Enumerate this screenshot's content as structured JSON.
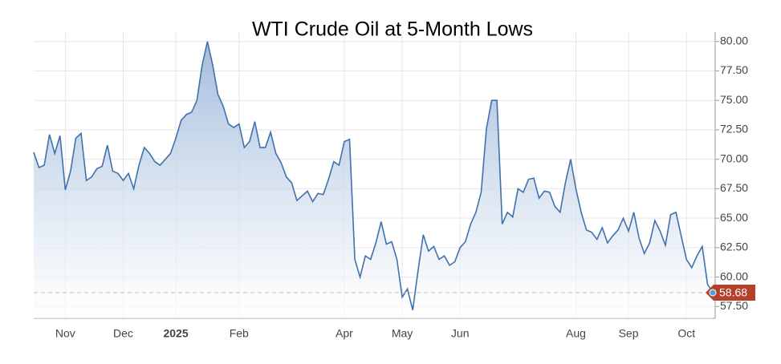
{
  "chart_data": {
    "type": "line",
    "title": "WTI Crude Oil at 5-Month Lows",
    "categories": [
      null,
      null,
      null,
      null,
      null,
      null,
      "Nov",
      null,
      null,
      null,
      null,
      null,
      null,
      null,
      null,
      null,
      null,
      "Dec",
      null,
      null,
      null,
      null,
      null,
      null,
      null,
      null,
      null,
      "2025",
      null,
      null,
      null,
      null,
      null,
      null,
      null,
      null,
      null,
      null,
      null,
      "Feb",
      null,
      null,
      null,
      null,
      null,
      null,
      null,
      null,
      null,
      null,
      null,
      null,
      null,
      null,
      null,
      null,
      null,
      null,
      null,
      "Apr",
      null,
      null,
      null,
      null,
      null,
      null,
      null,
      null,
      null,
      null,
      "May",
      null,
      null,
      null,
      null,
      null,
      null,
      null,
      null,
      null,
      null,
      "Jun",
      null,
      null,
      null,
      null,
      null,
      null,
      null,
      null,
      null,
      null,
      null,
      null,
      null,
      null,
      null,
      null,
      null,
      null,
      null,
      null,
      null,
      "Aug",
      null,
      null,
      null,
      null,
      null,
      null,
      null,
      null,
      null,
      "Sep",
      null,
      null,
      null,
      null,
      null,
      null,
      null,
      null,
      null,
      null,
      "Oct",
      null,
      null,
      null,
      null,
      null
    ],
    "values": [
      70.6,
      69.3,
      69.5,
      72.1,
      70.5,
      72.0,
      67.4,
      69.0,
      71.8,
      72.2,
      68.2,
      68.5,
      69.2,
      69.4,
      71.2,
      69.0,
      68.8,
      68.2,
      68.8,
      67.5,
      69.5,
      71.0,
      70.5,
      69.8,
      69.5,
      70.0,
      70.5,
      71.8,
      73.3,
      73.8,
      74.0,
      75.0,
      78.0,
      80.0,
      78.0,
      75.5,
      74.5,
      73.0,
      72.7,
      73.0,
      71.0,
      71.5,
      73.2,
      71.0,
      71.0,
      72.3,
      70.5,
      69.7,
      68.5,
      68.0,
      66.5,
      66.9,
      67.3,
      66.4,
      67.1,
      67.0,
      68.3,
      69.8,
      69.5,
      71.5,
      71.7,
      61.5,
      60.0,
      61.8,
      61.5,
      62.9,
      64.7,
      62.8,
      63.0,
      61.5,
      58.3,
      59.0,
      57.2,
      60.5,
      63.6,
      62.2,
      62.6,
      61.5,
      61.8,
      61.0,
      61.3,
      62.5,
      63.0,
      64.5,
      65.5,
      67.2,
      72.6,
      75.0,
      75.0,
      64.5,
      65.5,
      65.1,
      67.5,
      67.2,
      68.3,
      68.4,
      66.7,
      67.3,
      67.2,
      66.0,
      65.5,
      68.0,
      70.0,
      67.5,
      65.5,
      64.0,
      63.8,
      63.2,
      64.2,
      62.9,
      63.5,
      64.0,
      65.0,
      63.9,
      65.5,
      63.3,
      62.0,
      62.9,
      64.8,
      63.9,
      62.7,
      65.3,
      65.5,
      63.5,
      61.5,
      60.8,
      61.8,
      62.6,
      59.4,
      58.68
    ],
    "color": "#3f72ad",
    "ylim": [
      56.5,
      80.8
    ],
    "yticks": [
      {
        "value": 57.5,
        "label": "57.50"
      },
      {
        "value": 60,
        "label": "60.00"
      },
      {
        "value": 62.5,
        "label": "62.50"
      },
      {
        "value": 65,
        "label": "65.00"
      },
      {
        "value": 67.5,
        "label": "67.50"
      },
      {
        "value": 70,
        "label": "70.00"
      },
      {
        "value": 72.5,
        "label": "72.50"
      },
      {
        "value": 75,
        "label": "75.00"
      },
      {
        "value": 77.5,
        "label": "77.50"
      },
      {
        "value": 80,
        "label": "80.00"
      }
    ],
    "grid": true
  }
}
